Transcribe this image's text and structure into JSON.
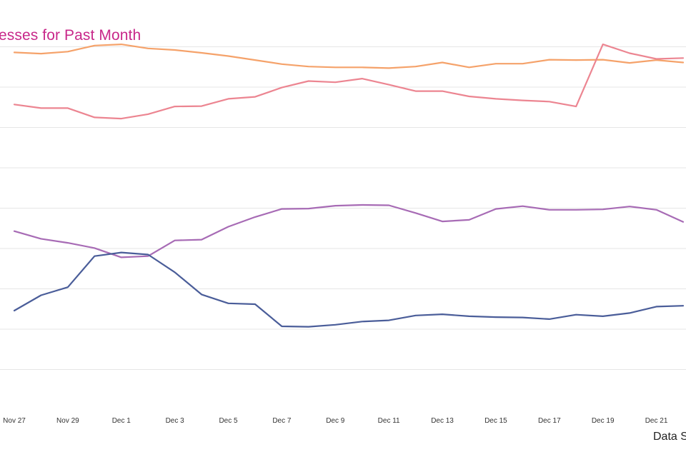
{
  "title": "esses for Past Month",
  "source_note": "Data S",
  "chart_data": {
    "type": "line",
    "title": "esses for Past Month",
    "xlabel": "",
    "ylabel": "",
    "grid": true,
    "legend": "none",
    "x": [
      "Nov 27",
      "Nov 28",
      "Nov 29",
      "Nov 30",
      "Dec 1",
      "Dec 2",
      "Dec 3",
      "Dec 4",
      "Dec 5",
      "Dec 6",
      "Dec 7",
      "Dec 8",
      "Dec 9",
      "Dec 10",
      "Dec 11",
      "Dec 12",
      "Dec 13",
      "Dec 14",
      "Dec 15",
      "Dec 16",
      "Dec 17",
      "Dec 18",
      "Dec 19",
      "Dec 20",
      "Dec 21",
      "Dec 22"
    ],
    "xtick_labels": [
      "Nov 27",
      "Nov 29",
      "Dec 1",
      "Dec 3",
      "Dec 5",
      "Dec 7",
      "Dec 9",
      "Dec 11",
      "Dec 13",
      "Dec 15",
      "Dec 17",
      "Dec 19",
      "Dec 21"
    ],
    "ylim": [
      0,
      10
    ],
    "yticks": [
      1,
      2,
      3,
      4,
      5,
      6,
      7,
      8,
      9
    ],
    "series": [
      {
        "color": "#f5a26a",
        "values": [
          8.86,
          8.83,
          8.88,
          9.03,
          9.06,
          8.96,
          8.92,
          8.85,
          8.77,
          8.67,
          8.57,
          8.51,
          8.49,
          8.49,
          8.47,
          8.51,
          8.61,
          8.49,
          8.58,
          8.58,
          8.68,
          8.67,
          8.68,
          8.6,
          8.67,
          8.61
        ]
      },
      {
        "color": "#ec8591",
        "values": [
          7.57,
          7.48,
          7.48,
          7.25,
          7.22,
          7.33,
          7.52,
          7.53,
          7.71,
          7.76,
          7.99,
          8.15,
          8.12,
          8.21,
          8.06,
          7.9,
          7.9,
          7.77,
          7.71,
          7.67,
          7.64,
          7.52,
          9.06,
          8.84,
          8.7,
          8.72
        ]
      },
      {
        "color": "#a76bb5",
        "values": [
          4.43,
          4.24,
          4.14,
          4.01,
          3.78,
          3.81,
          4.2,
          4.22,
          4.54,
          4.78,
          4.98,
          4.99,
          5.06,
          5.08,
          5.07,
          4.88,
          4.67,
          4.71,
          4.98,
          5.05,
          4.96,
          4.96,
          4.97,
          5.04,
          4.96,
          4.66
        ]
      },
      {
        "color": "#4a5d99",
        "values": [
          2.46,
          2.84,
          3.04,
          3.81,
          3.9,
          3.85,
          3.41,
          2.86,
          2.64,
          2.62,
          2.07,
          2.06,
          2.11,
          2.19,
          2.22,
          2.34,
          2.37,
          2.32,
          2.3,
          2.29,
          2.25,
          2.36,
          2.32,
          2.4,
          2.56,
          2.58
        ]
      }
    ]
  }
}
